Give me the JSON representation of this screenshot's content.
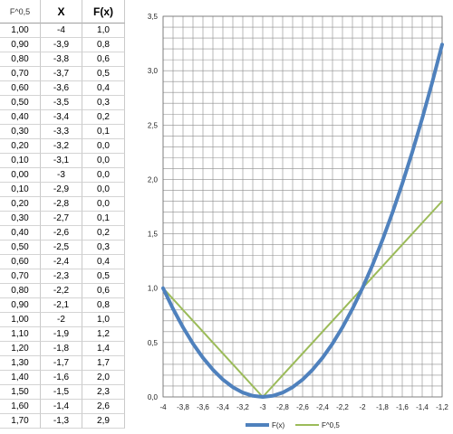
{
  "table": {
    "headers": [
      "F^0,5",
      "X",
      "F(x)"
    ],
    "rows": [
      [
        "1,00",
        "-4",
        "1,0"
      ],
      [
        "0,90",
        "-3,9",
        "0,8"
      ],
      [
        "0,80",
        "-3,8",
        "0,6"
      ],
      [
        "0,70",
        "-3,7",
        "0,5"
      ],
      [
        "0,60",
        "-3,6",
        "0,4"
      ],
      [
        "0,50",
        "-3,5",
        "0,3"
      ],
      [
        "0,40",
        "-3,4",
        "0,2"
      ],
      [
        "0,30",
        "-3,3",
        "0,1"
      ],
      [
        "0,20",
        "-3,2",
        "0,0"
      ],
      [
        "0,10",
        "-3,1",
        "0,0"
      ],
      [
        "0,00",
        "-3",
        "0,0"
      ],
      [
        "0,10",
        "-2,9",
        "0,0"
      ],
      [
        "0,20",
        "-2,8",
        "0,0"
      ],
      [
        "0,30",
        "-2,7",
        "0,1"
      ],
      [
        "0,40",
        "-2,6",
        "0,2"
      ],
      [
        "0,50",
        "-2,5",
        "0,3"
      ],
      [
        "0,60",
        "-2,4",
        "0,4"
      ],
      [
        "0,70",
        "-2,3",
        "0,5"
      ],
      [
        "0,80",
        "-2,2",
        "0,6"
      ],
      [
        "0,90",
        "-2,1",
        "0,8"
      ],
      [
        "1,00",
        "-2",
        "1,0"
      ],
      [
        "1,10",
        "-1,9",
        "1,2"
      ],
      [
        "1,20",
        "-1,8",
        "1,4"
      ],
      [
        "1,30",
        "-1,7",
        "1,7"
      ],
      [
        "1,40",
        "-1,6",
        "2,0"
      ],
      [
        "1,50",
        "-1,5",
        "2,3"
      ],
      [
        "1,60",
        "-1,4",
        "2,6"
      ],
      [
        "1,70",
        "-1,3",
        "2,9"
      ]
    ]
  },
  "chart_data": {
    "type": "line",
    "x": [
      -4,
      -3.9,
      -3.8,
      -3.7,
      -3.6,
      -3.5,
      -3.4,
      -3.3,
      -3.2,
      -3.1,
      -3,
      -2.9,
      -2.8,
      -2.7,
      -2.6,
      -2.5,
      -2.4,
      -2.3,
      -2.2,
      -2.1,
      -2,
      -1.9,
      -1.8,
      -1.7,
      -1.6,
      -1.5,
      -1.4,
      -1.3,
      -1.2
    ],
    "series": [
      {
        "name": "F(x)",
        "color": "#4f81bd",
        "values": [
          1.0,
          0.81,
          0.64,
          0.49,
          0.36,
          0.25,
          0.16,
          0.09,
          0.04,
          0.01,
          0.0,
          0.01,
          0.04,
          0.09,
          0.16,
          0.25,
          0.36,
          0.49,
          0.64,
          0.81,
          1.0,
          1.21,
          1.44,
          1.69,
          1.96,
          2.25,
          2.56,
          2.89,
          3.24
        ]
      },
      {
        "name": "F^0,5",
        "color": "#9bbb59",
        "values": [
          1.0,
          0.9,
          0.8,
          0.7,
          0.6,
          0.5,
          0.4,
          0.3,
          0.2,
          0.1,
          0.0,
          0.1,
          0.2,
          0.3,
          0.4,
          0.5,
          0.6,
          0.7,
          0.8,
          0.9,
          1.0,
          1.1,
          1.2,
          1.3,
          1.4,
          1.5,
          1.6,
          1.7,
          1.8
        ]
      }
    ],
    "xlim": [
      -4,
      -1.2
    ],
    "ylim": [
      0,
      3.5
    ],
    "x_tick_labels": [
      "-4",
      "-3,8",
      "-3,6",
      "-3,4",
      "-3,2",
      "-3",
      "-2,8",
      "-2,6",
      "-2,4",
      "-2,2",
      "-2",
      "-1,8",
      "-1,6",
      "-1,4",
      "-1,2"
    ],
    "y_tick_labels": [
      "0,0",
      "0,5",
      "1,0",
      "1,5",
      "2,0",
      "2,5",
      "3,0",
      "3,5"
    ],
    "grid": true,
    "legend": "bottom"
  }
}
